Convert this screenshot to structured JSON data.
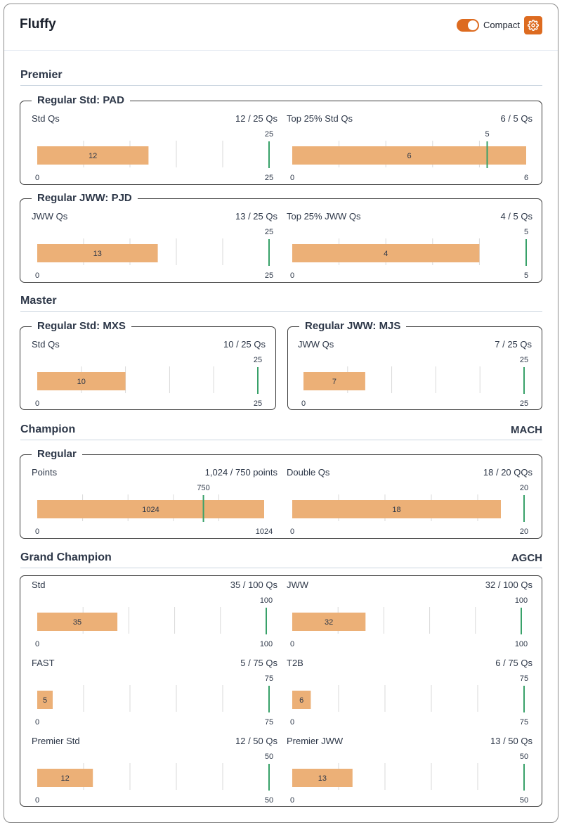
{
  "header": {
    "title": "Fluffy",
    "toggle_label": "Compact",
    "toggle_on": true,
    "accent_color": "#dd6b20"
  },
  "colors": {
    "bar": "#ecb077",
    "target": "#38a169",
    "grid": "#d9d9d9"
  },
  "sections": {
    "premier": {
      "title": "Premier",
      "groups": {
        "pad": {
          "legend": "Regular Std: PAD",
          "metrics": {
            "left": {
              "label": "Std Qs",
              "value_text": "12 / 25 Qs",
              "value": 12,
              "target": 25,
              "max": 25
            },
            "right": {
              "label": "Top 25% Std Qs",
              "value_text": "6 / 5 Qs",
              "value": 6,
              "target": 5,
              "max": 6
            }
          }
        },
        "pjd": {
          "legend": "Regular JWW: PJD",
          "metrics": {
            "left": {
              "label": "JWW Qs",
              "value_text": "13 / 25 Qs",
              "value": 13,
              "target": 25,
              "max": 25
            },
            "right": {
              "label": "Top 25% JWW Qs",
              "value_text": "4 / 5 Qs",
              "value": 4,
              "target": 5,
              "max": 5
            }
          }
        }
      }
    },
    "master": {
      "title": "Master",
      "groups": {
        "mxs": {
          "legend": "Regular Std: MXS",
          "metrics": {
            "left": {
              "label": "Std Qs",
              "value_text": "10 / 25 Qs",
              "value": 10,
              "target": 25,
              "max": 25
            }
          }
        },
        "mjs": {
          "legend": "Regular JWW: MJS",
          "metrics": {
            "left": {
              "label": "JWW Qs",
              "value_text": "7 / 25 Qs",
              "value": 7,
              "target": 25,
              "max": 25
            }
          }
        }
      }
    },
    "champion": {
      "title": "Champion",
      "badge": "MACH",
      "groups": {
        "regular": {
          "legend": "Regular",
          "metrics": {
            "left": {
              "label": "Points",
              "value_text": "1,024 / 750 points",
              "value": 1024,
              "target": 750,
              "max": 1024
            },
            "right": {
              "label": "Double Qs",
              "value_text": "18 / 20 QQs",
              "value": 18,
              "target": 20,
              "max": 20
            }
          }
        }
      }
    },
    "grand": {
      "title": "Grand Champion",
      "badge": "AGCH",
      "groups": {
        "main": {
          "metrics": {
            "std": {
              "label": "Std",
              "value_text": "35 / 100 Qs",
              "value": 35,
              "target": 100,
              "max": 100
            },
            "jww": {
              "label": "JWW",
              "value_text": "32 / 100 Qs",
              "value": 32,
              "target": 100,
              "max": 100
            },
            "fast": {
              "label": "FAST",
              "value_text": "5 / 75 Qs",
              "value": 5,
              "target": 75,
              "max": 75
            },
            "t2b": {
              "label": "T2B",
              "value_text": "6 / 75 Qs",
              "value": 6,
              "target": 75,
              "max": 75
            },
            "pstd": {
              "label": "Premier Std",
              "value_text": "12 / 50 Qs",
              "value": 12,
              "target": 50,
              "max": 50
            },
            "pjww": {
              "label": "Premier JWW",
              "value_text": "13 / 50 Qs",
              "value": 13,
              "target": 50,
              "max": 50
            }
          }
        }
      }
    }
  }
}
